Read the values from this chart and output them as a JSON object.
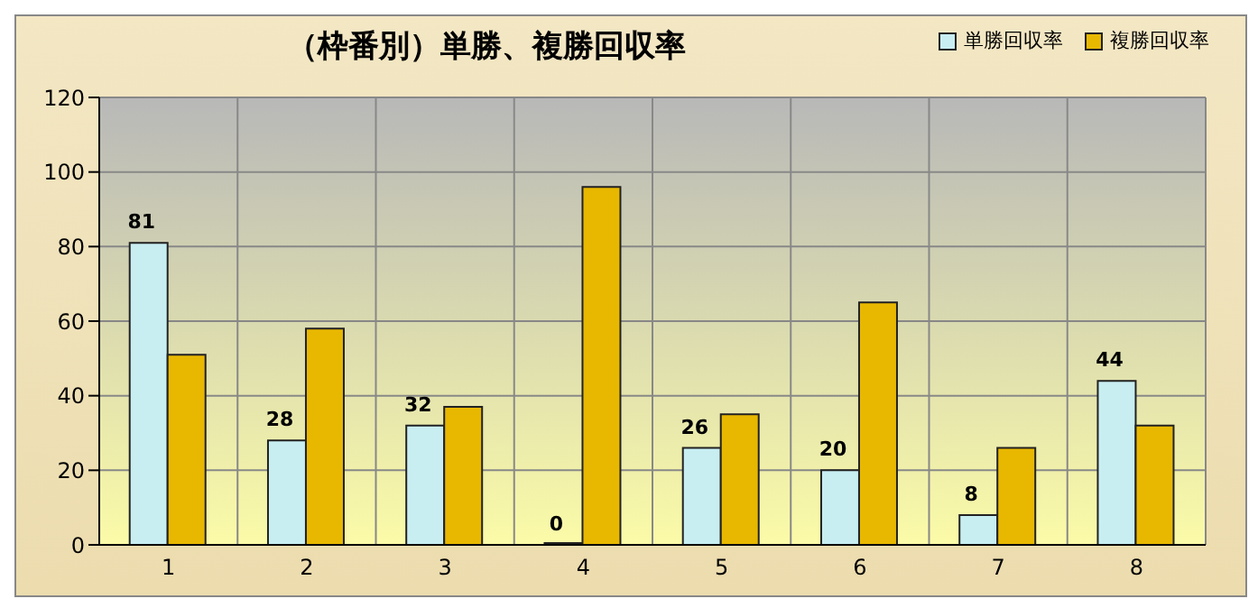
{
  "chart_data": {
    "type": "bar",
    "title": "（枠番別）単勝、複勝回収率",
    "categories": [
      "1",
      "2",
      "3",
      "4",
      "5",
      "6",
      "7",
      "8"
    ],
    "series": [
      {
        "name": "単勝回収率",
        "color": "#c8eef2",
        "values": [
          81,
          28,
          32,
          0,
          26,
          20,
          8,
          44
        ],
        "value_labels": [
          "81",
          "28",
          "32",
          "0",
          "26",
          "20",
          "8",
          "44"
        ]
      },
      {
        "name": "複勝回収率",
        "color": "#e8b800",
        "values": [
          51,
          58,
          37,
          96,
          35,
          65,
          26,
          32
        ]
      }
    ],
    "ylim": [
      0,
      120
    ],
    "yticks": [
      0,
      20,
      40,
      60,
      80,
      100,
      120
    ],
    "grid": true,
    "legend": "top right"
  }
}
